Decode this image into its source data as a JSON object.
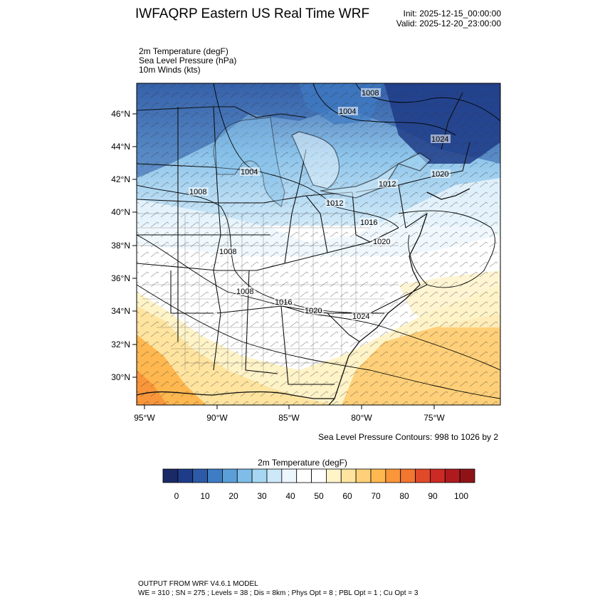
{
  "header": {
    "title": "IWFAQRP Eastern US Real Time WRF",
    "init": "Init: 2025-12-15_00:00:00",
    "valid": "Valid: 2025-12-20_23:00:00"
  },
  "fields": [
    "2m Temperature   (degF)",
    "Sea Level Pressure   (hPa)",
    "10m Winds   (kts)"
  ],
  "axes": {
    "lat_labels": [
      "46°N",
      "44°N",
      "42°N",
      "40°N",
      "38°N",
      "36°N",
      "34°N",
      "32°N",
      "30°N"
    ],
    "lon_labels": [
      "95°W",
      "90°W",
      "85°W",
      "80°W",
      "75°W"
    ]
  },
  "pressure_labels": [
    "1008",
    "1004",
    "1004",
    "1008",
    "1012",
    "1008",
    "1012",
    "1016",
    "1016",
    "1020",
    "1020",
    "1024",
    "1008",
    "1020",
    "1024"
  ],
  "contours_note": "Sea Level Pressure Contours: 998 to 1026 by 2",
  "colorbar": {
    "title": "2m Temperature  (degF)",
    "colors": [
      "#1a2a66",
      "#1f3c88",
      "#2c5aa6",
      "#3e7cc4",
      "#5b9fd8",
      "#7fbde8",
      "#a6d6f2",
      "#cde8f8",
      "#ecf6fc",
      "#ffffff",
      "#ffffff",
      "#fff3c8",
      "#ffe4a0",
      "#ffd079",
      "#ffb84f",
      "#f9963a",
      "#f27530",
      "#e0492a",
      "#cc2a24",
      "#b01a1f",
      "#8e1317"
    ],
    "tick_labels": [
      "0",
      "10",
      "20",
      "30",
      "40",
      "50",
      "60",
      "70",
      "80",
      "90",
      "100"
    ]
  },
  "footer": {
    "line1": "OUTPUT FROM WRF V4.6.1 MODEL",
    "line2": "WE = 310 ; SN = 275 ; Levels = 38 ; Dis = 8km ; Phys Opt = 8 ; PBL Opt = 1 ; Cu Opt = 3"
  }
}
